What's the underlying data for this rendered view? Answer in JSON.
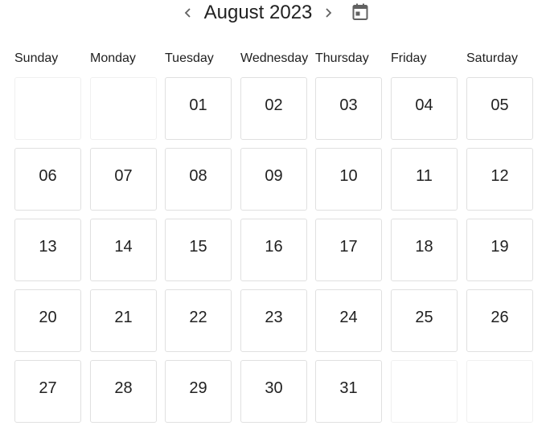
{
  "header": {
    "month_label": "August 2023",
    "prev_icon": "chevron-left-icon",
    "next_icon": "chevron-right-icon",
    "calendar_icon": "calendar-icon"
  },
  "weekdays": [
    "Sunday",
    "Monday",
    "Tuesday",
    "Wednesday",
    "Thursday",
    "Friday",
    "Saturday"
  ],
  "weeks": [
    [
      "",
      "",
      "01",
      "02",
      "03",
      "04",
      "05"
    ],
    [
      "06",
      "07",
      "08",
      "09",
      "10",
      "11",
      "12"
    ],
    [
      "13",
      "14",
      "15",
      "16",
      "17",
      "18",
      "19"
    ],
    [
      "20",
      "21",
      "22",
      "23",
      "24",
      "25",
      "26"
    ],
    [
      "27",
      "28",
      "29",
      "30",
      "31",
      "",
      ""
    ]
  ],
  "colors": {
    "text": "#212121",
    "icon": "#616161",
    "cell_border": "#e0e0e0"
  }
}
